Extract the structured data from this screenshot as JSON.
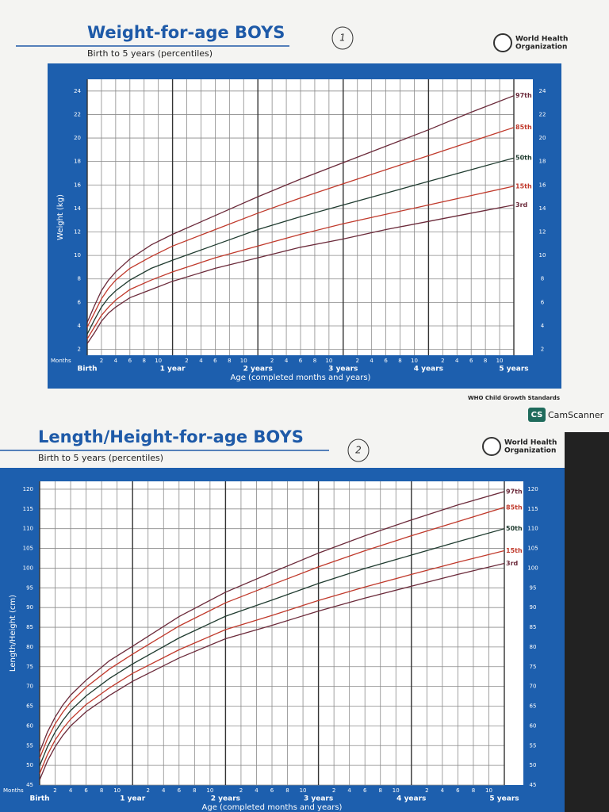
{
  "chart_data": [
    {
      "type": "line",
      "title": "Weight-for-age BOYS",
      "subtitle": "Birth to 5 years (percentiles)",
      "annotation": "1",
      "logo": [
        "World Health",
        "Organization"
      ],
      "footer": "WHO Child Growth Standards",
      "y_label": "Weight (kg)",
      "x_label": "Age (completed months and years)",
      "x_unit_label": "Months",
      "x": [
        0,
        1,
        2,
        3,
        4,
        6,
        9,
        12,
        18,
        24,
        30,
        36,
        42,
        48,
        54,
        60
      ],
      "xlim": [
        0,
        60
      ],
      "ylim": [
        1.5,
        25
      ],
      "xticks": [
        {
          "value": 0,
          "label": "Birth"
        },
        2,
        4,
        6,
        8,
        10,
        {
          "value": 12,
          "label": "1 year"
        },
        {
          "value": 14,
          "label": "2"
        },
        {
          "value": 16,
          "label": "4"
        },
        {
          "value": 18,
          "label": "6"
        },
        {
          "value": 20,
          "label": "8"
        },
        {
          "value": 22,
          "label": "10"
        },
        {
          "value": 24,
          "label": "2 years"
        },
        {
          "value": 26,
          "label": "2"
        },
        {
          "value": 28,
          "label": "4"
        },
        {
          "value": 30,
          "label": "6"
        },
        {
          "value": 32,
          "label": "8"
        },
        {
          "value": 34,
          "label": "10"
        },
        {
          "value": 36,
          "label": "3 years"
        },
        {
          "value": 38,
          "label": "2"
        },
        {
          "value": 40,
          "label": "4"
        },
        {
          "value": 42,
          "label": "6"
        },
        {
          "value": 44,
          "label": "8"
        },
        {
          "value": 46,
          "label": "10"
        },
        {
          "value": 48,
          "label": "4 years"
        },
        {
          "value": 50,
          "label": "2"
        },
        {
          "value": 52,
          "label": "4"
        },
        {
          "value": 54,
          "label": "6"
        },
        {
          "value": 56,
          "label": "8"
        },
        {
          "value": 58,
          "label": "10"
        },
        {
          "value": 60,
          "label": "5 years"
        }
      ],
      "yticks": [
        2,
        4,
        6,
        8,
        10,
        12,
        14,
        16,
        18,
        20,
        22,
        24
      ],
      "grid": true,
      "series": [
        {
          "name": "97th",
          "color": "#6b2a3a",
          "values": [
            4.3,
            5.7,
            7.0,
            7.9,
            8.6,
            9.7,
            10.9,
            11.8,
            13.4,
            15.0,
            16.5,
            17.9,
            19.3,
            20.7,
            22.2,
            23.6
          ]
        },
        {
          "name": "85th",
          "color": "#c0392b",
          "values": [
            3.9,
            5.1,
            6.3,
            7.2,
            7.9,
            8.9,
            9.9,
            10.8,
            12.2,
            13.6,
            14.9,
            16.1,
            17.3,
            18.5,
            19.7,
            20.9
          ]
        },
        {
          "name": "50th",
          "color": "#1f3b2f",
          "values": [
            3.3,
            4.5,
            5.6,
            6.4,
            7.0,
            7.9,
            8.9,
            9.6,
            10.9,
            12.2,
            13.3,
            14.3,
            15.3,
            16.3,
            17.3,
            18.3
          ]
        },
        {
          "name": "15th",
          "color": "#c0392b",
          "values": [
            2.9,
            3.9,
            4.9,
            5.6,
            6.2,
            7.1,
            7.9,
            8.6,
            9.8,
            10.8,
            11.8,
            12.7,
            13.5,
            14.3,
            15.1,
            15.9
          ]
        },
        {
          "name": "3rd",
          "color": "#6b2a3a",
          "values": [
            2.5,
            3.4,
            4.4,
            5.1,
            5.6,
            6.4,
            7.1,
            7.8,
            8.9,
            9.8,
            10.7,
            11.4,
            12.2,
            12.9,
            13.6,
            14.3
          ]
        }
      ]
    },
    {
      "type": "line",
      "title": "Length/Height-for-age BOYS",
      "subtitle": "Birth to 5 years (percentiles)",
      "annotation": "2",
      "logo": [
        "World Health",
        "Organization"
      ],
      "y_label": "Length/Height (cm)",
      "x_label": "Age (completed months and years)",
      "x_unit_label": "Months",
      "x": [
        0,
        1,
        2,
        3,
        4,
        6,
        9,
        12,
        18,
        24,
        30,
        36,
        42,
        48,
        54,
        60
      ],
      "xlim": [
        0,
        60
      ],
      "ylim": [
        45,
        122
      ],
      "xticks": [
        {
          "value": 0,
          "label": "Birth"
        },
        2,
        4,
        6,
        8,
        10,
        {
          "value": 12,
          "label": "1 year"
        },
        {
          "value": 14,
          "label": "2"
        },
        {
          "value": 16,
          "label": "4"
        },
        {
          "value": 18,
          "label": "6"
        },
        {
          "value": 20,
          "label": "8"
        },
        {
          "value": 22,
          "label": "10"
        },
        {
          "value": 24,
          "label": "2 years"
        },
        {
          "value": 26,
          "label": "2"
        },
        {
          "value": 28,
          "label": "4"
        },
        {
          "value": 30,
          "label": "6"
        },
        {
          "value": 32,
          "label": "8"
        },
        {
          "value": 34,
          "label": "10"
        },
        {
          "value": 36,
          "label": "3 years"
        },
        {
          "value": 38,
          "label": "2"
        },
        {
          "value": 40,
          "label": "4"
        },
        {
          "value": 42,
          "label": "6"
        },
        {
          "value": 44,
          "label": "8"
        },
        {
          "value": 46,
          "label": "10"
        },
        {
          "value": 48,
          "label": "4 years"
        },
        {
          "value": 50,
          "label": "2"
        },
        {
          "value": 52,
          "label": "4"
        },
        {
          "value": 54,
          "label": "6"
        },
        {
          "value": 56,
          "label": "8"
        },
        {
          "value": 58,
          "label": "10"
        },
        {
          "value": 60,
          "label": "5 years"
        }
      ],
      "yticks": [
        45,
        50,
        55,
        60,
        65,
        70,
        75,
        80,
        85,
        90,
        95,
        100,
        105,
        110,
        115,
        120
      ],
      "grid": true,
      "series": [
        {
          "name": "97th",
          "color": "#6b2a3a",
          "values": [
            53.4,
            58.4,
            62.2,
            65.3,
            67.8,
            71.6,
            76.5,
            80.2,
            87.7,
            93.9,
            98.9,
            103.8,
            108.2,
            112.2,
            116.0,
            119.4
          ]
        },
        {
          "name": "85th",
          "color": "#c0392b",
          "values": [
            51.8,
            56.7,
            60.5,
            63.5,
            66.0,
            69.8,
            74.4,
            78.2,
            85.3,
            91.2,
            95.8,
            100.3,
            104.4,
            108.2,
            111.8,
            115.4
          ]
        },
        {
          "name": "50th",
          "color": "#1f3b2f",
          "values": [
            49.9,
            54.7,
            58.4,
            61.4,
            63.9,
            67.6,
            72.0,
            75.7,
            82.3,
            87.8,
            91.9,
            96.1,
            99.9,
            103.3,
            106.7,
            110.0
          ]
        },
        {
          "name": "15th",
          "color": "#c0392b",
          "values": [
            47.9,
            52.7,
            56.4,
            59.3,
            61.7,
            65.4,
            69.6,
            73.3,
            79.3,
            84.4,
            88.0,
            91.8,
            95.2,
            98.4,
            101.5,
            104.4
          ]
        },
        {
          "name": "3rd",
          "color": "#6b2a3a",
          "values": [
            46.3,
            51.1,
            54.7,
            57.6,
            60.0,
            63.6,
            67.7,
            71.3,
            77.2,
            82.1,
            85.5,
            89.1,
            92.4,
            95.4,
            98.4,
            101.2
          ]
        }
      ]
    }
  ],
  "scanner": {
    "badge": "CS",
    "name": "CamScanner"
  }
}
